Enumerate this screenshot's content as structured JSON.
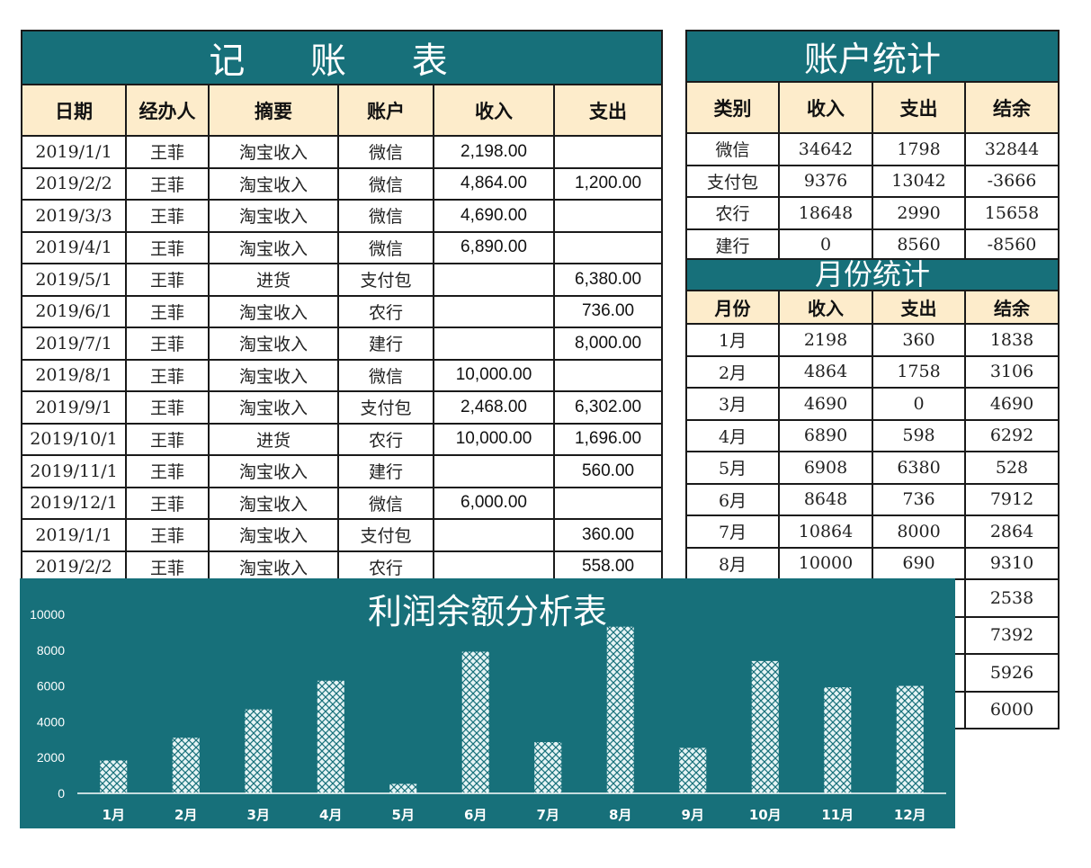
{
  "ledger": {
    "title": "记 账 表",
    "headers": [
      "日期",
      "经办人",
      "摘要",
      "账户",
      "收入",
      "支出"
    ],
    "rows": [
      [
        "2019/1/1",
        "王菲",
        "淘宝收入",
        "微信",
        "2,198.00",
        ""
      ],
      [
        "2019/2/2",
        "王菲",
        "淘宝收入",
        "微信",
        "4,864.00",
        "1,200.00"
      ],
      [
        "2019/3/3",
        "王菲",
        "淘宝收入",
        "微信",
        "4,690.00",
        ""
      ],
      [
        "2019/4/1",
        "王菲",
        "淘宝收入",
        "微信",
        "6,890.00",
        ""
      ],
      [
        "2019/5/1",
        "王菲",
        "进货",
        "支付包",
        "",
        "6,380.00"
      ],
      [
        "2019/6/1",
        "王菲",
        "淘宝收入",
        "农行",
        "",
        "736.00"
      ],
      [
        "2019/7/1",
        "王菲",
        "淘宝收入",
        "建行",
        "",
        "8,000.00"
      ],
      [
        "2019/8/1",
        "王菲",
        "淘宝收入",
        "微信",
        "10,000.00",
        ""
      ],
      [
        "2019/9/1",
        "王菲",
        "淘宝收入",
        "支付包",
        "2,468.00",
        "6,302.00"
      ],
      [
        "2019/10/1",
        "王菲",
        "进货",
        "农行",
        "10,000.00",
        "1,696.00"
      ],
      [
        "2019/11/1",
        "王菲",
        "淘宝收入",
        "建行",
        "",
        "560.00"
      ],
      [
        "2019/12/1",
        "王菲",
        "淘宝收入",
        "微信",
        "6,000.00",
        ""
      ],
      [
        "2019/1/1",
        "王菲",
        "淘宝收入",
        "支付包",
        "",
        "360.00"
      ],
      [
        "2019/2/2",
        "王菲",
        "淘宝收入",
        "农行",
        "",
        "558.00"
      ]
    ]
  },
  "accounts": {
    "title": "账户统计",
    "headers": [
      "类别",
      "收入",
      "支出",
      "结余"
    ],
    "rows": [
      [
        "微信",
        "34642",
        "1798",
        "32844"
      ],
      [
        "支付包",
        "9376",
        "13042",
        "-3666"
      ],
      [
        "农行",
        "18648",
        "2990",
        "15658"
      ],
      [
        "建行",
        "0",
        "8560",
        "-8560"
      ]
    ]
  },
  "months": {
    "title": "月份统计",
    "headers": [
      "月份",
      "收入",
      "支出",
      "结余"
    ],
    "rows": [
      [
        "1月",
        "2198",
        "360",
        "1838"
      ],
      [
        "2月",
        "4864",
        "1758",
        "3106"
      ],
      [
        "3月",
        "4690",
        "0",
        "4690"
      ],
      [
        "4月",
        "6890",
        "598",
        "6292"
      ],
      [
        "5月",
        "6908",
        "6380",
        "528"
      ],
      [
        "6月",
        "8648",
        "736",
        "7912"
      ],
      [
        "7月",
        "10864",
        "8000",
        "2864"
      ],
      [
        "8月",
        "10000",
        "690",
        "9310"
      ],
      [
        "",
        "",
        "",
        "2538"
      ],
      [
        "",
        "",
        "",
        "7392"
      ],
      [
        "",
        "",
        "",
        "5926"
      ],
      [
        "",
        "",
        "",
        "6000"
      ]
    ]
  },
  "chart_data": {
    "type": "bar",
    "title": "利润余额分析表",
    "categories": [
      "1月",
      "2月",
      "3月",
      "4月",
      "5月",
      "6月",
      "7月",
      "8月",
      "9月",
      "10月",
      "11月",
      "12月"
    ],
    "values": [
      1838,
      3106,
      4690,
      6292,
      528,
      7912,
      2864,
      9310,
      2538,
      7392,
      5926,
      6000
    ],
    "ylim": [
      0,
      10000
    ],
    "yticks": [
      0,
      2000,
      4000,
      6000,
      8000,
      10000
    ],
    "xlabel": "",
    "ylabel": "",
    "grid": false,
    "colors": {
      "background": "#17707a",
      "bar": "#e6f4f5",
      "bar_pattern": "#17707a",
      "axis": "#ffffff",
      "text": "#ffffff"
    }
  }
}
